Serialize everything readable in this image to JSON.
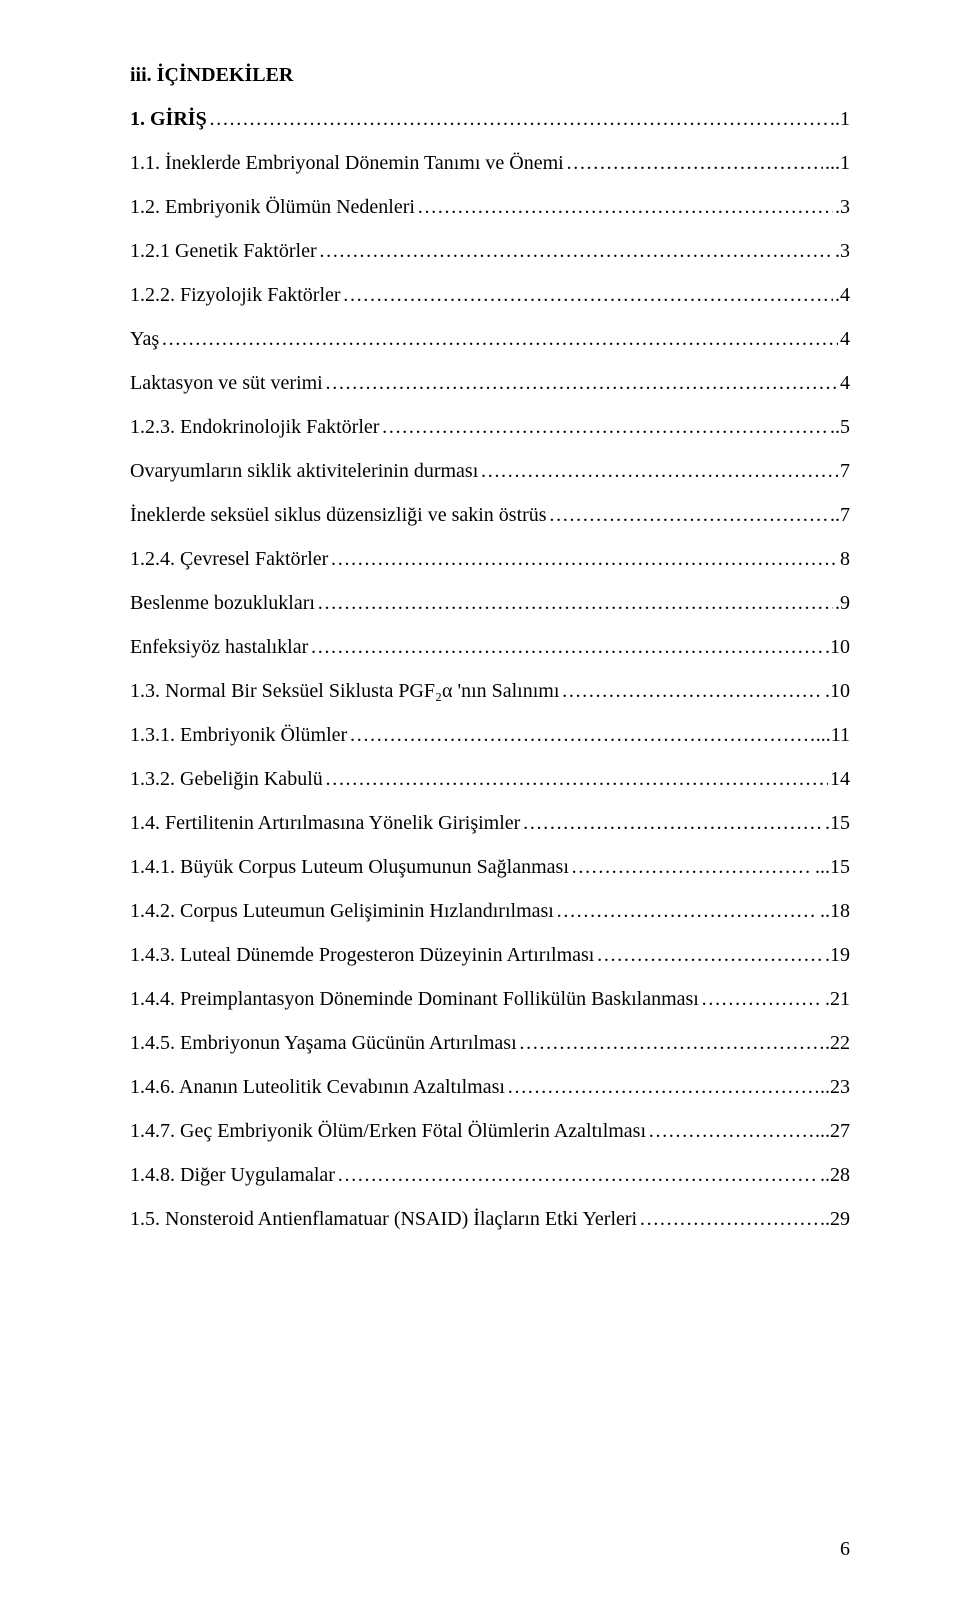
{
  "heading": "iii. İÇİNDEKİLER",
  "entries": [
    {
      "label": "1.  GİRİŞ",
      "page": "..1",
      "bold": true
    },
    {
      "label": "1.1.  İneklerde Embriyonal Dönemin Tanımı ve Önemi",
      "page": "...1",
      "bold": false
    },
    {
      "label": "1.2.  Embriyonik Ölümün Nedenleri",
      "page": ".3",
      "bold": false
    },
    {
      "label": "1.2.1 Genetik Faktörler",
      "page": ".3",
      "bold": false
    },
    {
      "label": "1.2.2. Fizyolojik Faktörler",
      "page": ".4",
      "bold": false
    },
    {
      "label": "Yaş",
      "page": "4",
      "bold": false
    },
    {
      "label": "Laktasyon ve süt verimi",
      "page": "4",
      "bold": false
    },
    {
      "label": "1.2.3. Endokrinolojik Faktörler",
      "page": "..5",
      "bold": false
    },
    {
      "label": "Ovaryumların siklik aktivitelerinin durması",
      "page": "7",
      "bold": false
    },
    {
      "label": "İneklerde seksüel siklus düzensizliği ve sakin östrüs",
      "page": "..7",
      "bold": false
    },
    {
      "label": "1.2.4. Çevresel Faktörler",
      "page": "8",
      "bold": false
    },
    {
      "label": "Beslenme bozuklukları",
      "page": ".9",
      "bold": false
    },
    {
      "label": "Enfeksiyöz hastalıklar",
      "page": ".10",
      "bold": false
    },
    {
      "label": "1.3.  Normal Bir Seksüel Siklusta PGF₂α 'nın Salınımı",
      "page": ".10",
      "bold": false
    },
    {
      "label": "1.3.1. Embriyonik Ölümler",
      "page": "...11",
      "bold": false
    },
    {
      "label": "1.3.2. Gebeliğin Kabulü",
      "page": "14",
      "bold": false
    },
    {
      "label": "1.4.  Fertilitenin Artırılmasına Yönelik Girişimler",
      "page": ".15",
      "bold": false
    },
    {
      "label": "1.4.1. Büyük Corpus Luteum Oluşumunun Sağlanması",
      "page": "...15",
      "bold": false
    },
    {
      "label": "1.4.2. Corpus Luteumun Gelişiminin Hızlandırılması",
      "page": "..18",
      "bold": false
    },
    {
      "label": "1.4.3. Luteal Dünemde Progesteron Düzeyinin Artırılması",
      "page": ".19",
      "bold": false
    },
    {
      "label": "1.4.4. Preimplantasyon Döneminde Dominant Follikülün Baskılanması",
      "page": ".21",
      "bold": false
    },
    {
      "label": "1.4.5. Embriyonun Yaşama Gücünün Artırılması",
      "page": ".22",
      "bold": false
    },
    {
      "label": "1.4.6. Ananın Luteolitik Cevabının Azaltılması",
      "page": "..23",
      "bold": false
    },
    {
      "label": "1.4.7. Geç Embriyonik Ölüm/Erken Fötal Ölümlerin Azaltılması",
      "page": "...27",
      "bold": false
    },
    {
      "label": "1.4.8. Diğer Uygulamalar",
      "page": "..28",
      "bold": false
    },
    {
      "label": "1.5.  Nonsteroid Antienflamatuar (NSAID) İlaçların Etki Yerleri",
      "page": "..29",
      "bold": false
    }
  ],
  "pageNumber": "6"
}
